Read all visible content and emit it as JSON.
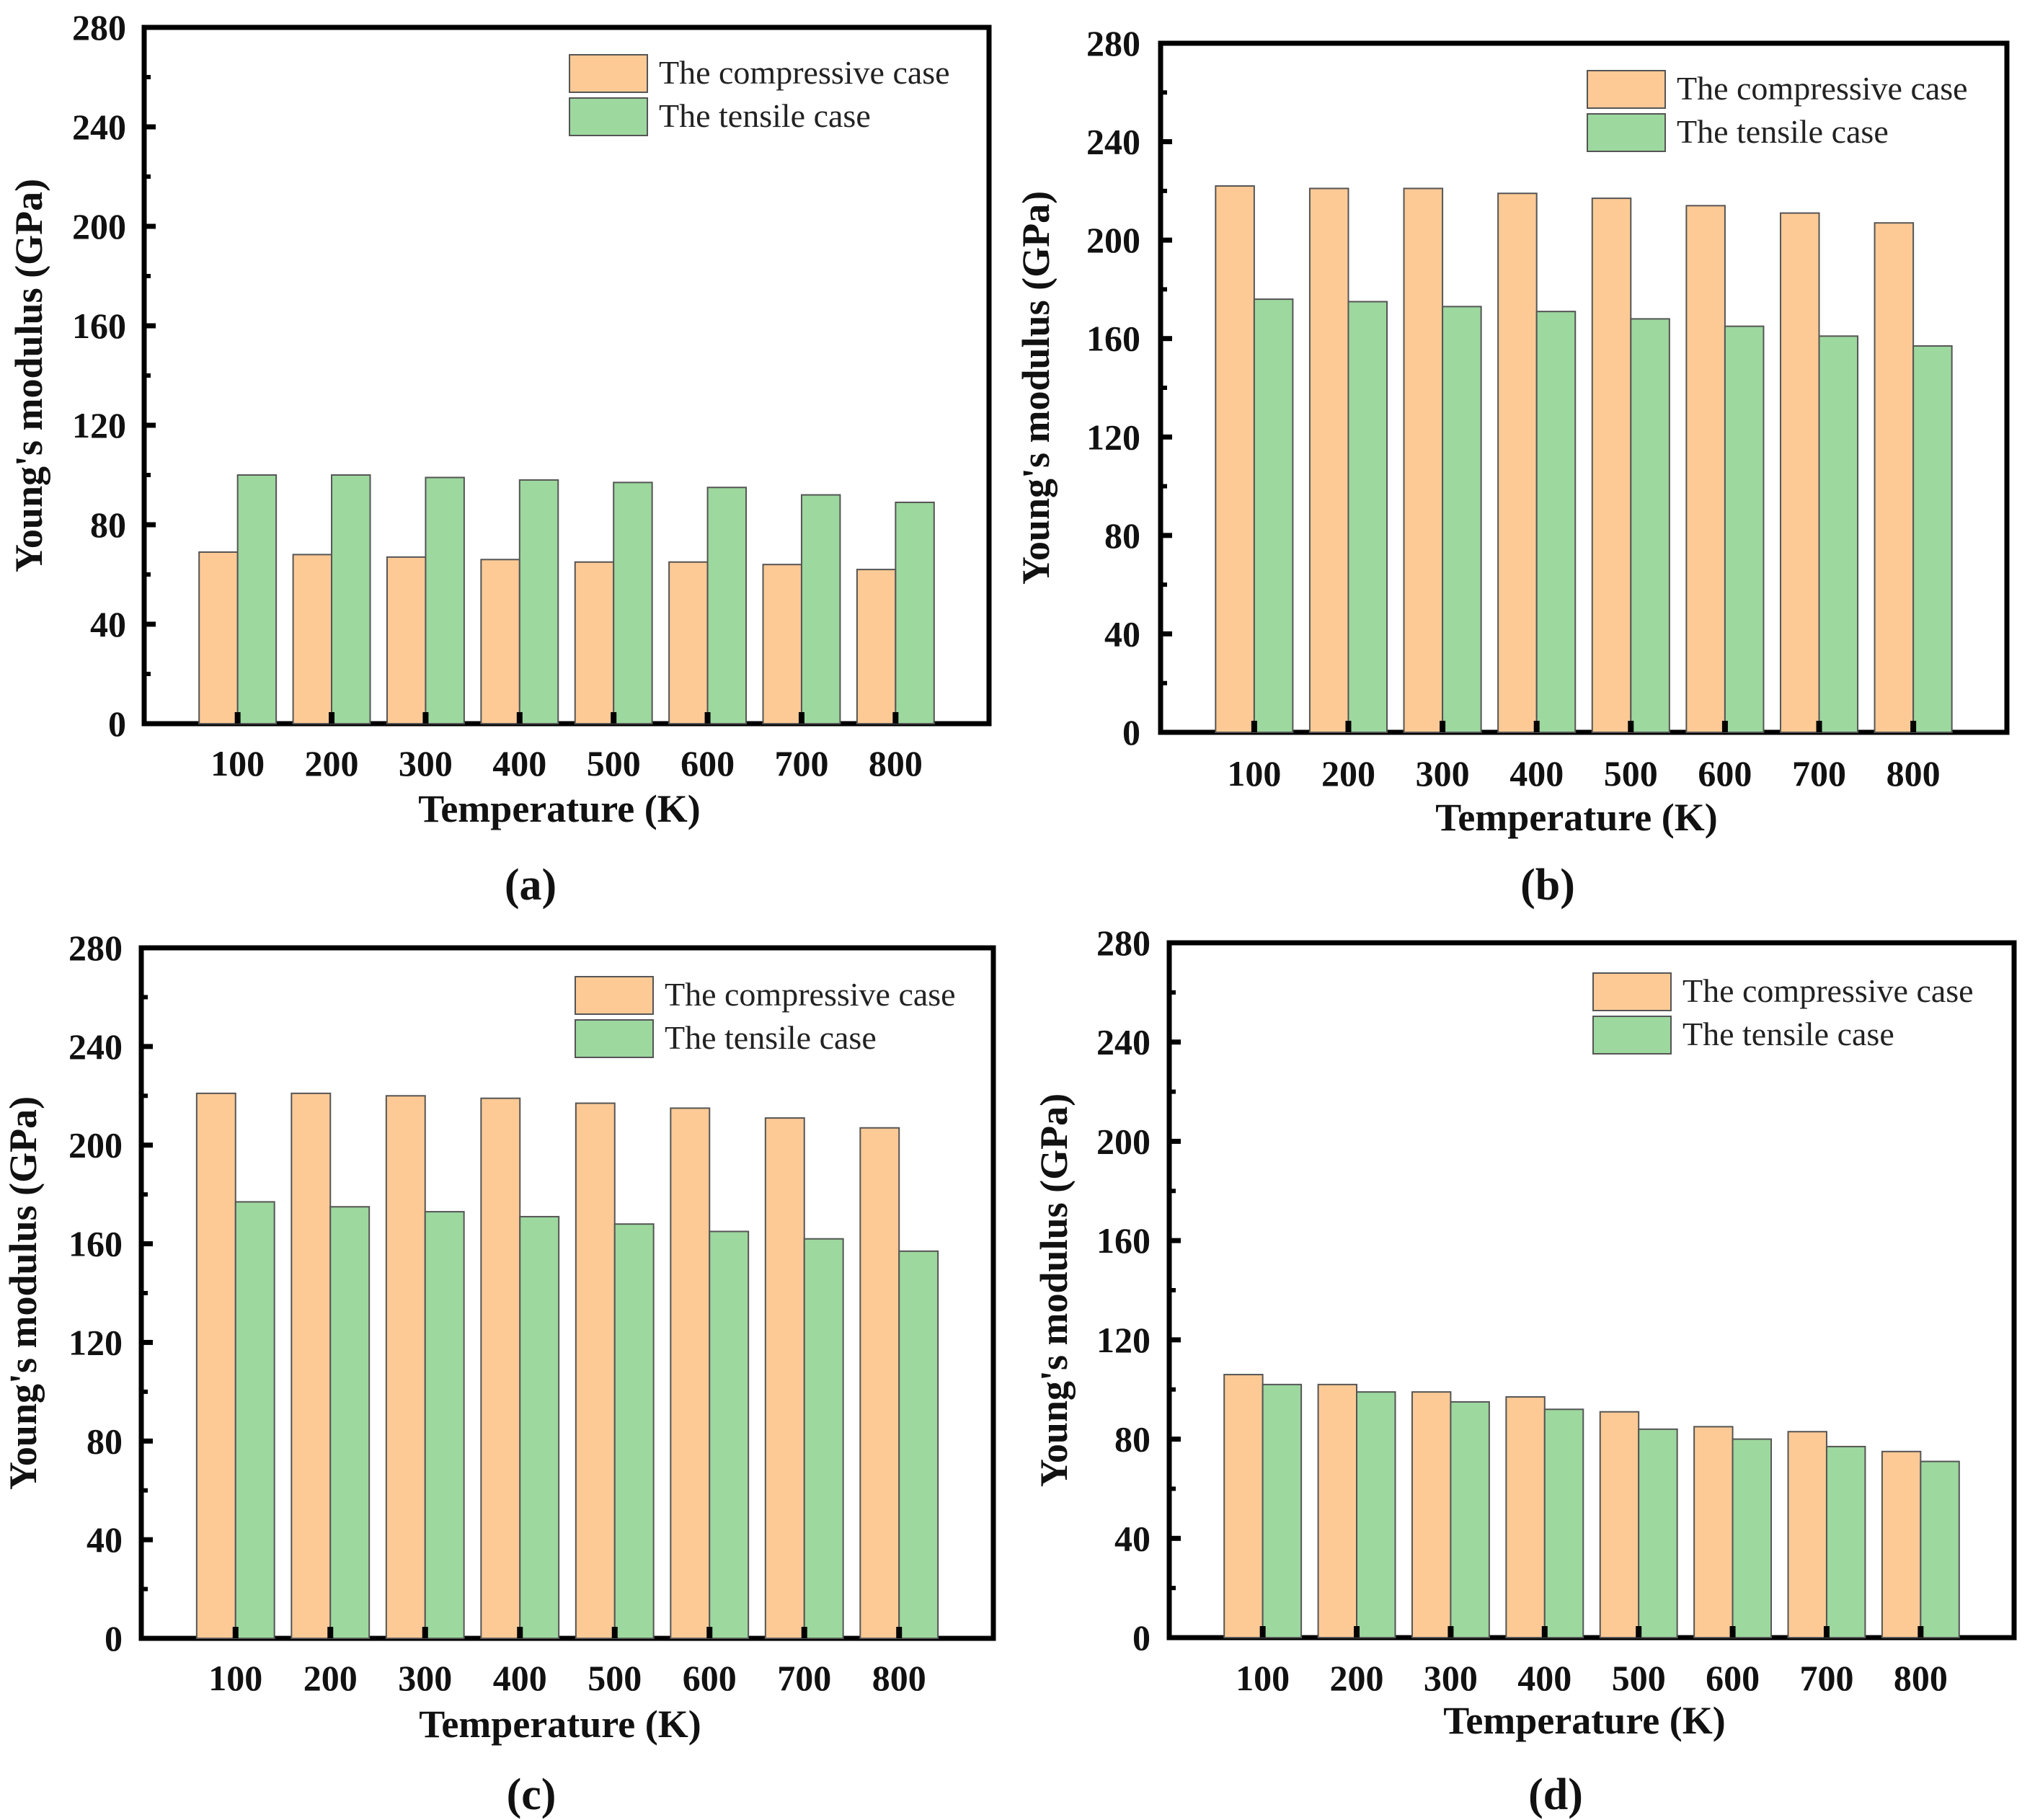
{
  "colors": {
    "compressive": "#FDCA96",
    "tensile": "#9DD89F",
    "bar_stroke": "#555555",
    "axis": "#000000"
  },
  "chart_data": [
    {
      "type": "bar",
      "panel": "(a)",
      "categories": [
        "100",
        "200",
        "300",
        "400",
        "500",
        "600",
        "700",
        "800"
      ],
      "series": [
        {
          "name": "The compressive case",
          "values": [
            69,
            68,
            67,
            66,
            65,
            65,
            64,
            62
          ]
        },
        {
          "name": "The tensile case",
          "values": [
            100,
            100,
            99,
            98,
            97,
            95,
            92,
            89
          ]
        }
      ],
      "xlabel": "Temperature (K)",
      "ylabel": "Young's modulus (GPa)",
      "ylim": [
        0,
        280
      ],
      "yticks": [
        "0",
        "40",
        "80",
        "120",
        "160",
        "200",
        "240",
        "280"
      ],
      "legend": "top-right"
    },
    {
      "type": "bar",
      "panel": "(b)",
      "categories": [
        "100",
        "200",
        "300",
        "400",
        "500",
        "600",
        "700",
        "800"
      ],
      "series": [
        {
          "name": "The compressive case",
          "values": [
            222,
            221,
            221,
            219,
            217,
            214,
            211,
            207
          ]
        },
        {
          "name": "The tensile case",
          "values": [
            176,
            175,
            173,
            171,
            168,
            165,
            161,
            157
          ]
        }
      ],
      "xlabel": "Temperature (K)",
      "ylabel": "Young's modulus (GPa)",
      "ylim": [
        0,
        280
      ],
      "yticks": [
        "0",
        "40",
        "80",
        "120",
        "160",
        "200",
        "240",
        "280"
      ],
      "legend": "top-right"
    },
    {
      "type": "bar",
      "panel": "(c)",
      "categories": [
        "100",
        "200",
        "300",
        "400",
        "500",
        "600",
        "700",
        "800"
      ],
      "series": [
        {
          "name": "The compressive case",
          "values": [
            221,
            221,
            220,
            219,
            217,
            215,
            211,
            207
          ]
        },
        {
          "name": "The tensile case",
          "values": [
            177,
            175,
            173,
            171,
            168,
            165,
            162,
            157
          ]
        }
      ],
      "xlabel": "Temperature (K)",
      "ylabel": "Young's modulus (GPa)",
      "ylim": [
        0,
        280
      ],
      "yticks": [
        "0",
        "40",
        "80",
        "120",
        "160",
        "200",
        "240",
        "280"
      ],
      "legend": "top-right"
    },
    {
      "type": "bar",
      "panel": "(d)",
      "categories": [
        "100",
        "200",
        "300",
        "400",
        "500",
        "600",
        "700",
        "800"
      ],
      "series": [
        {
          "name": "The compressive case",
          "values": [
            106,
            102,
            99,
            97,
            91,
            85,
            83,
            75
          ]
        },
        {
          "name": "The tensile case",
          "values": [
            102,
            99,
            95,
            92,
            84,
            80,
            77,
            71
          ]
        }
      ],
      "xlabel": "Temperature (K)",
      "ylabel": "Young's modulus (GPa)",
      "ylim": [
        0,
        280
      ],
      "yticks": [
        "0",
        "40",
        "80",
        "120",
        "160",
        "200",
        "240",
        "280"
      ],
      "legend": "top-right"
    }
  ]
}
